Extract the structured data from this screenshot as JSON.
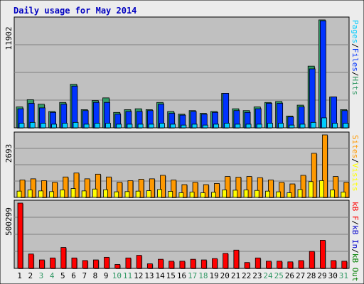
{
  "title": "Daily usage for May 2014",
  "colors": {
    "background": "#ECECEC",
    "panel": "#C0C0C0",
    "title": "#0000C0",
    "pages": "#00CCFF",
    "files": "#0033FF",
    "hits": "#339966",
    "visits": "#FFFF00",
    "sites": "#FF9900",
    "kbin": "#0000CC",
    "kbout": "#008000",
    "kbf": "#FF0000",
    "weekend": "#339966",
    "weekday": "#000000"
  },
  "legend": {
    "top": {
      "pages": "Pages",
      "files": "Files",
      "hits": "Hits",
      "sep": "/"
    },
    "middle": {
      "sites": "Sites",
      "visits": "Visits",
      "sep": "/"
    },
    "bottom": {
      "kbf": "kB F",
      "kbin": "kB In",
      "kbout": "kB Out",
      "sep": "/"
    }
  },
  "chart_data": [
    {
      "type": "bar",
      "panel": "requests",
      "ymax_label": "11902",
      "ylim": [
        0,
        11902
      ],
      "categories": [
        "1",
        "2",
        "3",
        "4",
        "5",
        "6",
        "7",
        "8",
        "9",
        "10",
        "11",
        "12",
        "13",
        "14",
        "15",
        "16",
        "17",
        "18",
        "19",
        "20",
        "21",
        "22",
        "23",
        "24",
        "25",
        "26",
        "27",
        "28",
        "29",
        "30",
        "31"
      ],
      "weekend_days": [
        3,
        4,
        10,
        11,
        17,
        18,
        24,
        25,
        31
      ],
      "series": [
        {
          "name": "Hits",
          "values": [
            2300,
            3100,
            2600,
            1800,
            2800,
            4800,
            2000,
            3000,
            3300,
            1700,
            2000,
            2100,
            2000,
            2800,
            1800,
            1500,
            1900,
            1600,
            1800,
            3800,
            2100,
            1900,
            2300,
            2800,
            2900,
            1300,
            2500,
            6800,
            11902,
            3400,
            2000
          ]
        },
        {
          "name": "Files",
          "values": [
            2100,
            2700,
            2200,
            1700,
            2600,
            4600,
            1900,
            2800,
            2800,
            1500,
            1800,
            1800,
            1900,
            2600,
            1600,
            1400,
            1800,
            1500,
            1700,
            3800,
            1900,
            1700,
            2100,
            2700,
            2700,
            1200,
            2300,
            6500,
            11800,
            3400,
            1900
          ]
        },
        {
          "name": "Pages",
          "values": [
            500,
            600,
            500,
            400,
            500,
            600,
            400,
            500,
            500,
            400,
            400,
            400,
            400,
            500,
            400,
            300,
            400,
            300,
            400,
            500,
            400,
            400,
            400,
            500,
            500,
            300,
            400,
            600,
            1100,
            500,
            500
          ]
        }
      ]
    },
    {
      "type": "bar",
      "panel": "visits",
      "ymax_label": "2693",
      "ylim": [
        0,
        2693
      ],
      "categories": [
        "1",
        "2",
        "3",
        "4",
        "5",
        "6",
        "7",
        "8",
        "9",
        "10",
        "11",
        "12",
        "13",
        "14",
        "15",
        "16",
        "17",
        "18",
        "19",
        "20",
        "21",
        "22",
        "23",
        "24",
        "25",
        "26",
        "27",
        "28",
        "29",
        "30",
        "31"
      ],
      "series": [
        {
          "name": "Sites",
          "values": [
            750,
            800,
            720,
            650,
            880,
            1050,
            800,
            1000,
            880,
            650,
            720,
            780,
            800,
            950,
            750,
            550,
            650,
            550,
            600,
            900,
            870,
            900,
            850,
            750,
            650,
            580,
            950,
            1900,
            2693,
            900,
            650
          ]
        },
        {
          "name": "Visits",
          "values": [
            270,
            320,
            280,
            250,
            320,
            380,
            280,
            360,
            330,
            240,
            250,
            270,
            290,
            340,
            260,
            200,
            230,
            200,
            220,
            320,
            310,
            320,
            300,
            270,
            240,
            200,
            340,
            680,
            720,
            320,
            230
          ]
        }
      ]
    },
    {
      "type": "bar",
      "panel": "volume",
      "ymax_label": "500299",
      "ylim": [
        0,
        500299
      ],
      "categories": [
        "1",
        "2",
        "3",
        "4",
        "5",
        "6",
        "7",
        "8",
        "9",
        "10",
        "11",
        "12",
        "13",
        "14",
        "15",
        "16",
        "17",
        "18",
        "19",
        "20",
        "21",
        "22",
        "23",
        "24",
        "25",
        "26",
        "27",
        "28",
        "29",
        "30",
        "31"
      ],
      "series": [
        {
          "name": "kB F",
          "values": [
            500299,
            110000,
            65000,
            80000,
            160000,
            80000,
            60000,
            65000,
            85000,
            30000,
            80000,
            100000,
            35000,
            70000,
            55000,
            55000,
            70000,
            65000,
            75000,
            115000,
            140000,
            45000,
            80000,
            55000,
            55000,
            50000,
            60000,
            130000,
            215000,
            60000,
            55000
          ]
        }
      ]
    }
  ]
}
